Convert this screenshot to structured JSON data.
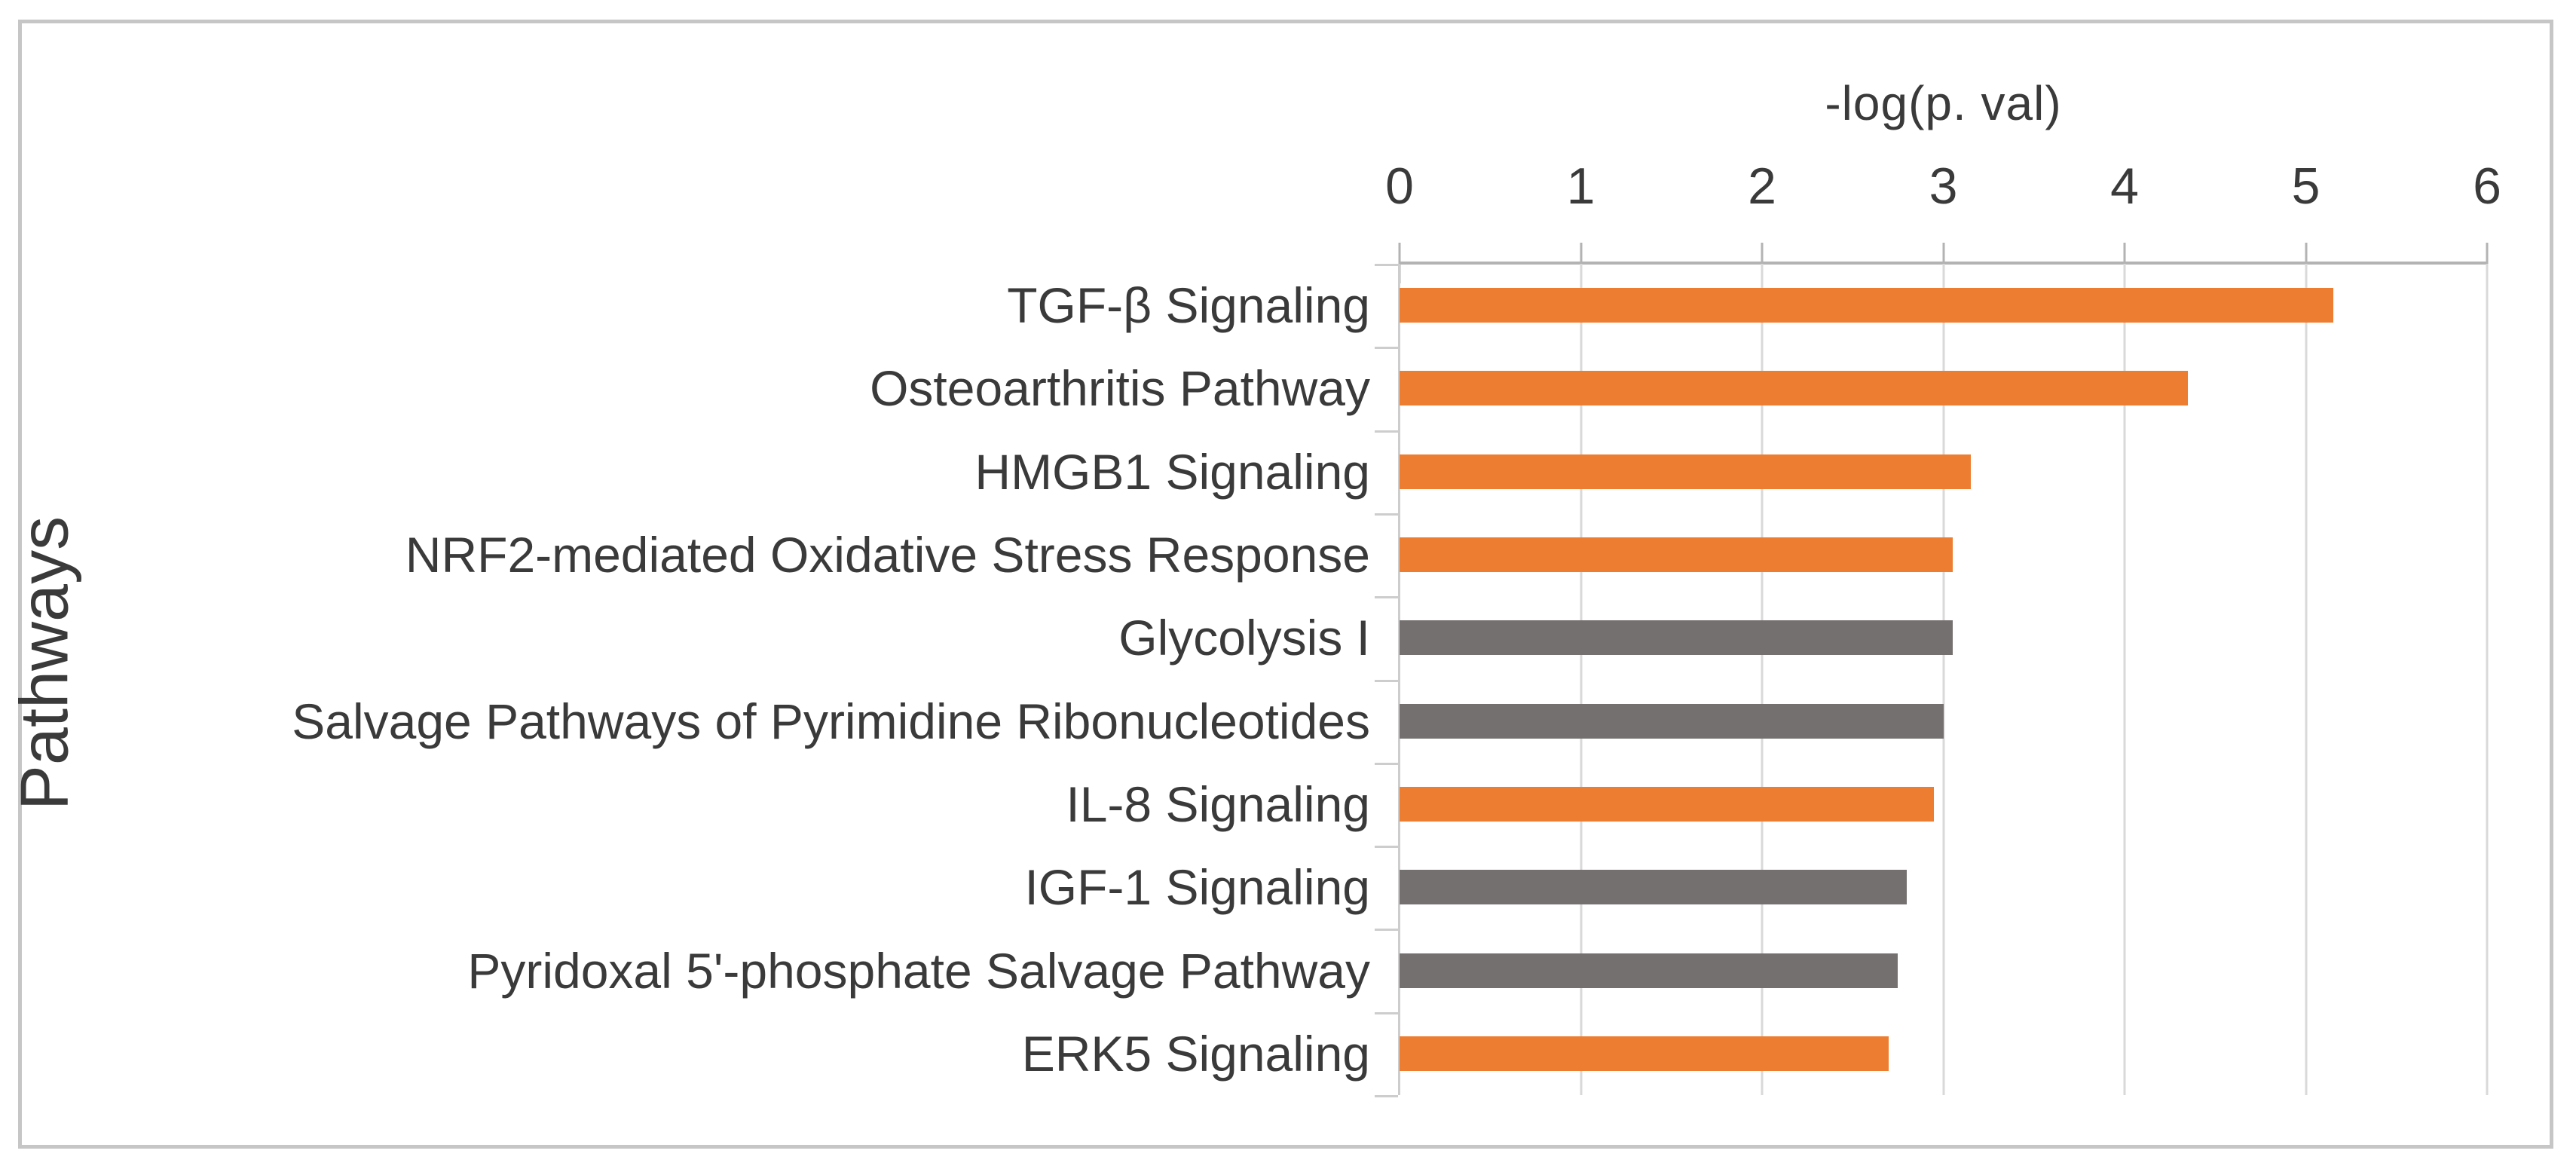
{
  "chart_data": {
    "type": "bar",
    "orientation": "horizontal",
    "title": "-log(p. val)",
    "xlabel": "-log(p. val)",
    "ylabel": "Pathways",
    "xlim": [
      0,
      6
    ],
    "xticks": [
      "0",
      "1",
      "2",
      "3",
      "4",
      "5",
      "6"
    ],
    "grid": "vertical-only",
    "legend": "none",
    "categories": [
      "TGF-β Signaling",
      "Osteoarthritis Pathway",
      "HMGB1 Signaling",
      "NRF2-mediated Oxidative Stress Response",
      "Glycolysis I",
      "Salvage Pathways of Pyrimidine Ribonucleotides",
      "IL-8 Signaling",
      "IGF-1 Signaling",
      "Pyridoxal 5'-phosphate Salvage Pathway",
      "ERK5 Signaling"
    ],
    "values": [
      5.15,
      4.35,
      3.15,
      3.05,
      3.05,
      3.0,
      2.95,
      2.8,
      2.75,
      2.7
    ],
    "bar_colors": [
      "#ED7D31",
      "#ED7D31",
      "#ED7D31",
      "#ED7D31",
      "#757070",
      "#757070",
      "#ED7D31",
      "#757070",
      "#757070",
      "#ED7D31"
    ],
    "colors": {
      "orange_series": "#ED7D31",
      "gray_series": "#757070",
      "axis_line": "#b3b3b3",
      "gridline": "#d9d9d9",
      "figure_border": "#c6c6c6",
      "text": "#3a3a3a"
    }
  }
}
